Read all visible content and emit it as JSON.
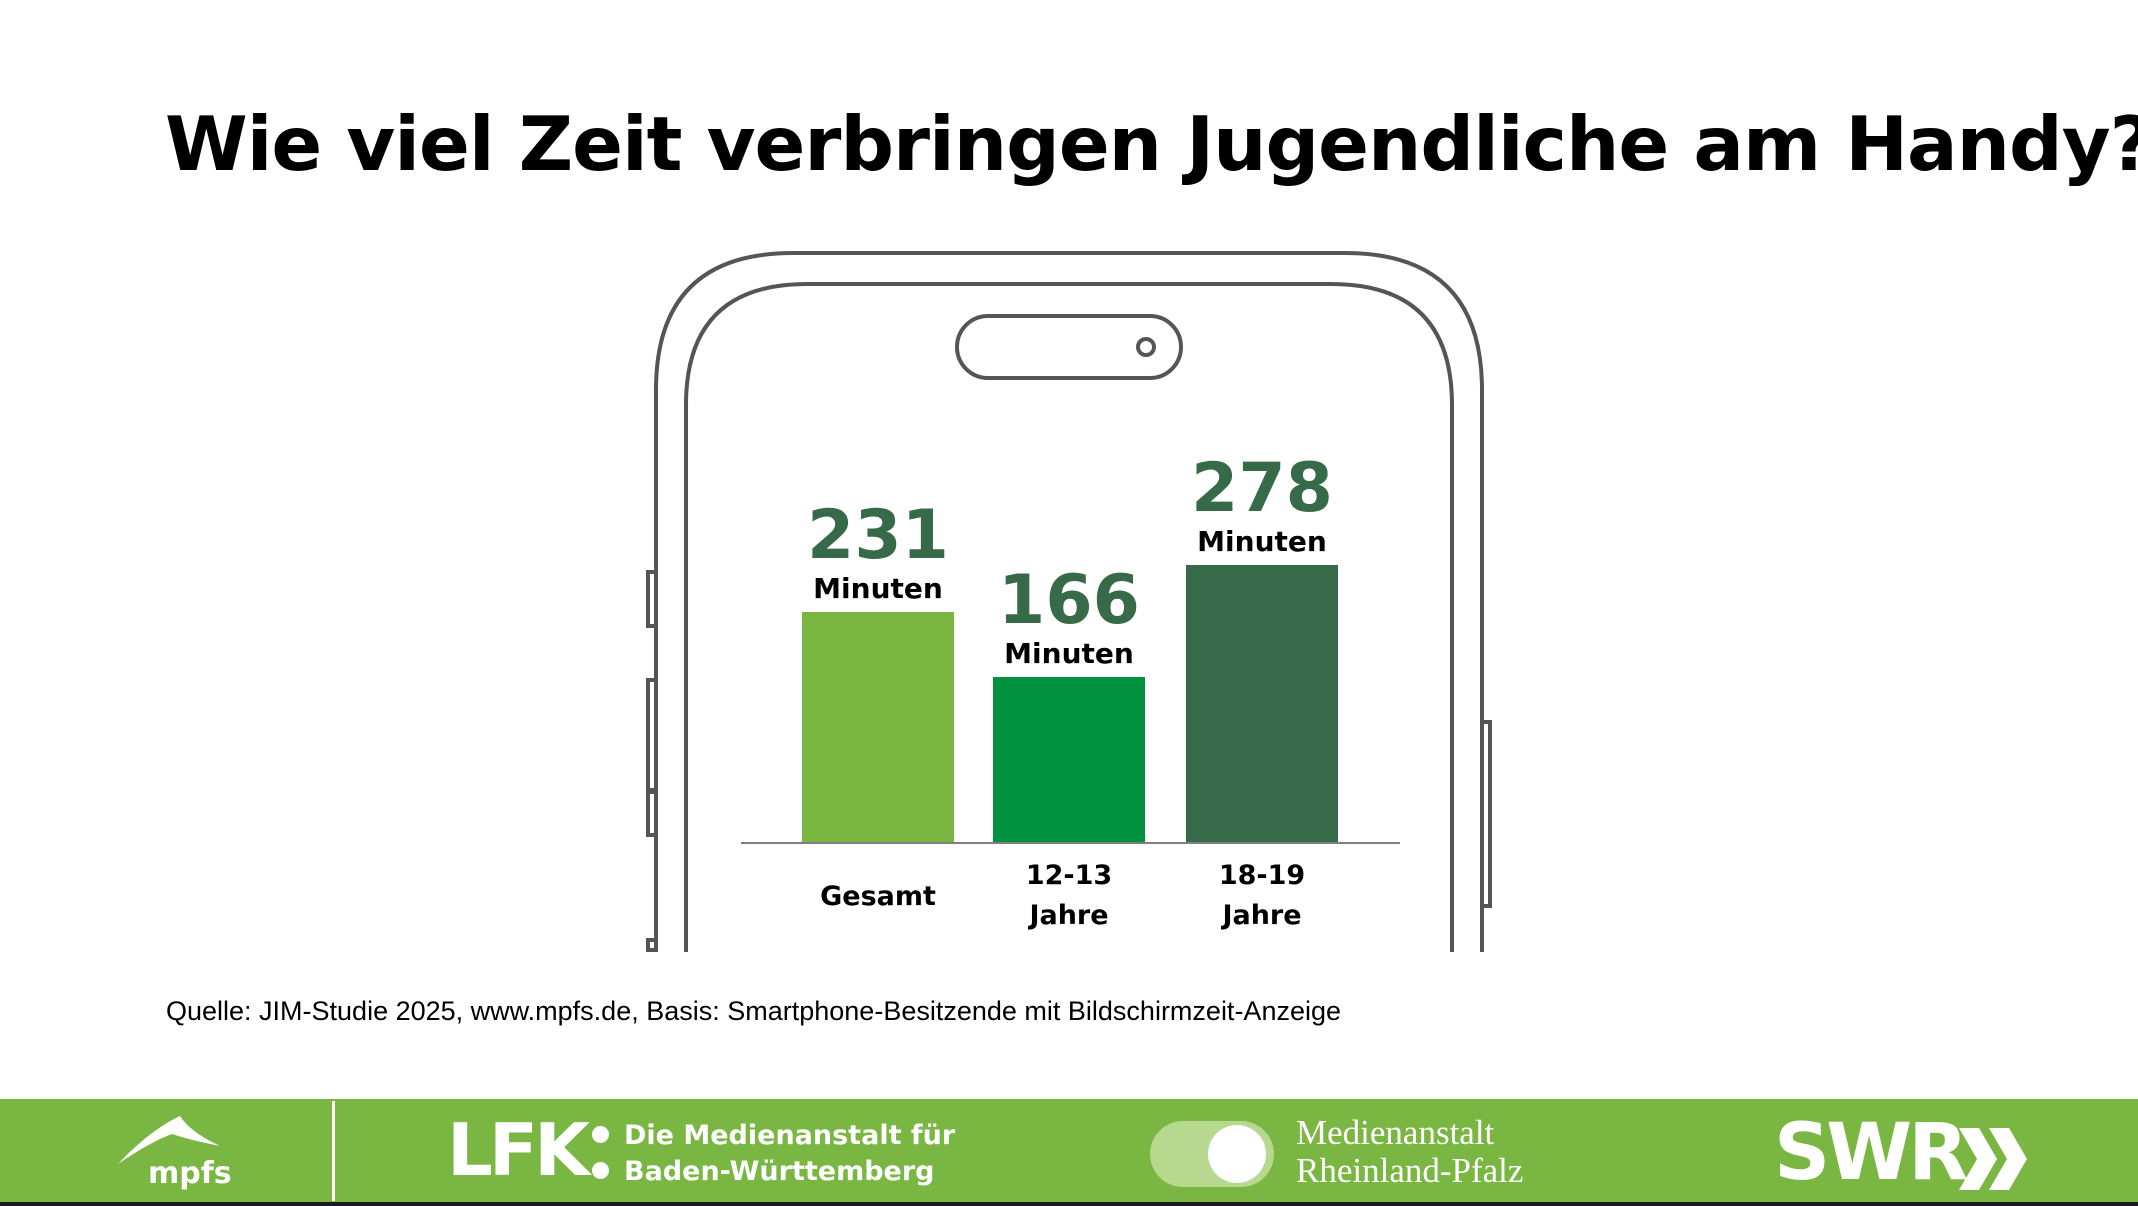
{
  "title": "Wie viel Zeit verbringen Jugendliche am Handy?",
  "chart_data": {
    "type": "bar",
    "title": "Wie viel Zeit verbringen Jugendliche am Handy?",
    "categories": [
      [
        "Gesamt"
      ],
      [
        "12-13",
        "Jahre"
      ],
      [
        "18-19",
        "Jahre"
      ]
    ],
    "values": [
      231,
      166,
      278
    ],
    "unit_label": "Minuten",
    "colors": [
      "#7ab642",
      "#00923f",
      "#376a48"
    ],
    "value_label_color": "#376a48",
    "baseline_color": "#7f7f7f",
    "ylim": [
      0,
      300
    ],
    "grid": false
  },
  "source": "Quelle: JIM-Studie 2025, www.mpfs.de, Basis: Smartphone-Besitzende mit Bildschirmzeit-Anzeige",
  "footer": {
    "background": "#7ab642",
    "mpfs": {
      "label": "mpfs"
    },
    "lfk": {
      "mark": "LFK",
      "line1": "Die Medienanstalt für",
      "line2": "Baden-Württemberg"
    },
    "rlp": {
      "line1": "Medienanstalt",
      "line2": "Rheinland-Pfalz"
    },
    "swr": {
      "label": "SWR"
    }
  }
}
